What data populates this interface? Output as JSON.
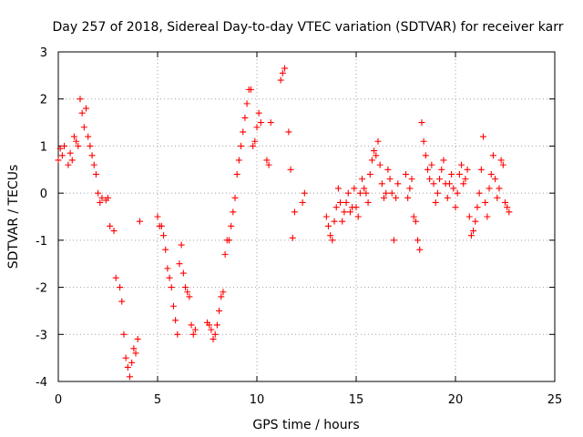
{
  "chart_data": {
    "type": "scatter",
    "title": "Day 257 of 2018, Sidereal Day-to-day VTEC variation (SDTVAR) for receiver karr",
    "xlabel": "GPS time / hours",
    "ylabel": "SDTVAR / TECUs",
    "xlim": [
      0,
      25
    ],
    "ylim": [
      -4,
      3
    ],
    "xticks": [
      "0",
      "5",
      "10",
      "15",
      "20",
      "25"
    ],
    "yticks": [
      "-4",
      "-3",
      "-2",
      "-1",
      "0",
      "1",
      "2",
      "3"
    ],
    "grid": true,
    "marker": "+",
    "color": "#ff0000",
    "series": [
      {
        "name": "SDTVAR",
        "x": [
          0.0,
          0.1,
          0.2,
          0.3,
          0.5,
          0.6,
          0.7,
          0.8,
          0.9,
          1.0,
          1.1,
          1.2,
          1.3,
          1.4,
          1.5,
          1.6,
          1.7,
          1.8,
          1.9,
          2.0,
          2.1,
          2.2,
          2.4,
          2.5,
          2.6,
          2.8,
          2.9,
          3.1,
          3.2,
          3.3,
          3.4,
          3.5,
          3.6,
          3.7,
          3.8,
          3.9,
          4.0,
          4.1,
          5.0,
          5.1,
          5.2,
          5.3,
          5.4,
          5.5,
          5.6,
          5.7,
          5.8,
          5.9,
          6.0,
          6.1,
          6.2,
          6.3,
          6.4,
          6.5,
          6.6,
          6.7,
          6.8,
          6.9,
          7.5,
          7.6,
          7.7,
          7.8,
          7.9,
          8.0,
          8.1,
          8.2,
          8.3,
          8.4,
          8.5,
          8.6,
          8.7,
          8.8,
          8.9,
          9.0,
          9.1,
          9.2,
          9.3,
          9.4,
          9.5,
          9.6,
          9.7,
          9.8,
          9.9,
          10.0,
          10.1,
          10.2,
          10.5,
          10.6,
          10.7,
          11.2,
          11.3,
          11.4,
          11.6,
          11.7,
          11.8,
          11.9,
          12.3,
          12.4,
          13.5,
          13.6,
          13.7,
          13.8,
          13.9,
          14.0,
          14.1,
          14.2,
          14.3,
          14.4,
          14.5,
          14.6,
          14.7,
          14.8,
          14.9,
          15.0,
          15.1,
          15.2,
          15.3,
          15.4,
          15.5,
          15.6,
          15.7,
          15.8,
          15.9,
          16.0,
          16.1,
          16.2,
          16.3,
          16.4,
          16.5,
          16.6,
          16.7,
          16.8,
          16.9,
          17.0,
          17.1,
          17.5,
          17.6,
          17.7,
          17.8,
          17.9,
          18.0,
          18.1,
          18.2,
          18.3,
          18.4,
          18.5,
          18.6,
          18.7,
          18.8,
          18.9,
          19.0,
          19.1,
          19.2,
          19.3,
          19.4,
          19.5,
          19.6,
          19.7,
          19.8,
          19.9,
          20.0,
          20.1,
          20.2,
          20.3,
          20.4,
          20.5,
          20.6,
          20.7,
          20.8,
          20.9,
          21.0,
          21.1,
          21.2,
          21.3,
          21.4,
          21.5,
          21.6,
          21.7,
          21.8,
          21.9,
          22.0,
          22.1,
          22.2,
          22.3,
          22.4,
          22.5,
          22.6,
          22.7
        ],
        "y": [
          0.7,
          0.95,
          0.8,
          1.0,
          0.6,
          0.85,
          0.7,
          1.2,
          1.1,
          1.0,
          2.0,
          1.7,
          1.4,
          1.8,
          1.2,
          1.0,
          0.8,
          0.6,
          0.4,
          0.0,
          -0.2,
          -0.1,
          -0.15,
          -0.1,
          -0.7,
          -0.8,
          -1.8,
          -2.0,
          -2.3,
          -3.0,
          -3.5,
          -3.7,
          -3.9,
          -3.6,
          -3.3,
          -3.4,
          -3.1,
          -0.6,
          -0.5,
          -0.7,
          -0.7,
          -0.9,
          -1.2,
          -1.6,
          -1.8,
          -2.0,
          -2.4,
          -2.7,
          -3.0,
          -1.5,
          -1.1,
          -1.7,
          -2.0,
          -2.1,
          -2.2,
          -2.8,
          -3.0,
          -2.9,
          -2.75,
          -2.8,
          -2.9,
          -3.1,
          -3.0,
          -2.8,
          -2.5,
          -2.2,
          -2.1,
          -1.3,
          -1.0,
          -1.0,
          -0.7,
          -0.4,
          -0.1,
          0.4,
          0.7,
          1.0,
          1.3,
          1.6,
          1.9,
          2.2,
          2.2,
          1.0,
          1.1,
          1.4,
          1.7,
          1.5,
          0.7,
          0.6,
          1.5,
          2.4,
          2.55,
          2.65,
          1.3,
          0.5,
          -0.95,
          -0.4,
          -0.2,
          0.0,
          -0.5,
          -0.7,
          -0.9,
          -1.0,
          -0.6,
          -0.3,
          0.1,
          -0.2,
          -0.6,
          -0.4,
          -0.2,
          0.0,
          -0.4,
          -0.3,
          0.1,
          -0.3,
          -0.5,
          0.0,
          0.3,
          0.1,
          0.0,
          -0.2,
          0.4,
          0.7,
          0.9,
          0.8,
          1.1,
          0.6,
          0.2,
          -0.1,
          0.0,
          0.5,
          0.3,
          0.0,
          -1.0,
          -0.1,
          0.2,
          0.4,
          -0.1,
          0.1,
          0.3,
          -0.5,
          -0.6,
          -1.0,
          -1.2,
          1.5,
          1.1,
          0.8,
          0.5,
          0.3,
          0.6,
          0.2,
          -0.2,
          0.0,
          0.3,
          0.5,
          0.7,
          0.2,
          -0.1,
          0.2,
          0.4,
          0.1,
          -0.3,
          0.0,
          0.4,
          0.6,
          0.2,
          0.3,
          0.5,
          -0.5,
          -0.9,
          -0.8,
          -0.6,
          -0.3,
          0.0,
          0.5,
          1.2,
          -0.2,
          -0.5,
          0.1,
          0.4,
          0.8,
          0.3,
          -0.1,
          0.1,
          0.7,
          0.6,
          -0.2,
          -0.3,
          -0.4
        ]
      }
    ]
  }
}
